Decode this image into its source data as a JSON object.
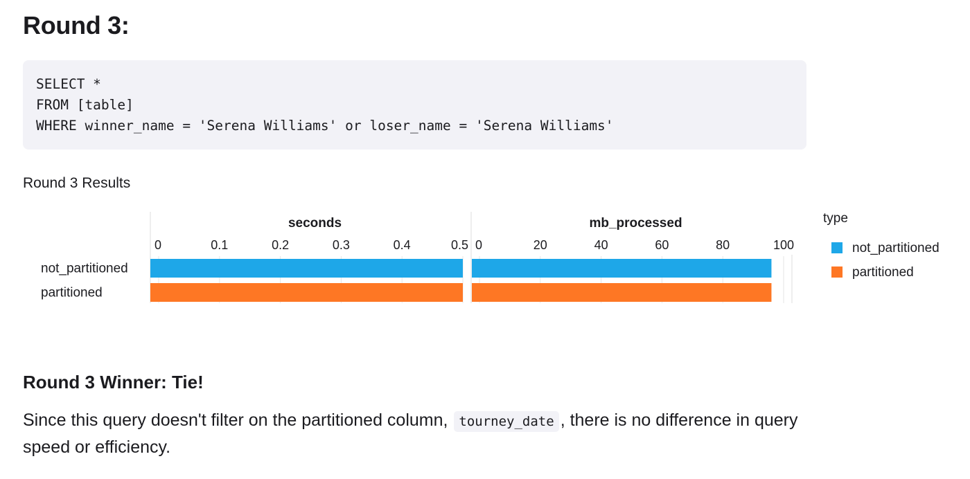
{
  "page": {
    "title": "Round 3:",
    "code_lines": [
      "SELECT *",
      "FROM [table]",
      "WHERE winner_name = 'Serena Williams' or loser_name = 'Serena Williams'"
    ],
    "results_heading": "Round 3 Results",
    "winner_heading": "Round 3 Winner: Tie!",
    "body_before": "Since this query doesn't filter on the partitioned column, ",
    "inline_code": "tourney_date",
    "body_after": ", there is no difference in query speed or efficiency."
  },
  "chart_data": {
    "type": "bar",
    "orientation": "horizontal",
    "categories": [
      "not_partitioned",
      "partitioned"
    ],
    "facets": [
      {
        "title": "seconds",
        "ticks": [
          0,
          0.1,
          0.2,
          0.3,
          0.4,
          0.5
        ],
        "xlim": [
          0,
          0.5
        ],
        "values": [
          0.5,
          0.5
        ]
      },
      {
        "title": "mb_processed",
        "ticks": [
          0,
          20,
          40,
          60,
          80,
          100
        ],
        "xlim": [
          0,
          100
        ],
        "values": [
          96,
          96
        ]
      }
    ],
    "legend": {
      "title": "type",
      "placement": "right",
      "entries": [
        "not_partitioned",
        "partitioned"
      ]
    },
    "colors": {
      "not_partitioned": "#1ea7e8",
      "partitioned": "#fe7724"
    },
    "grid": true
  }
}
